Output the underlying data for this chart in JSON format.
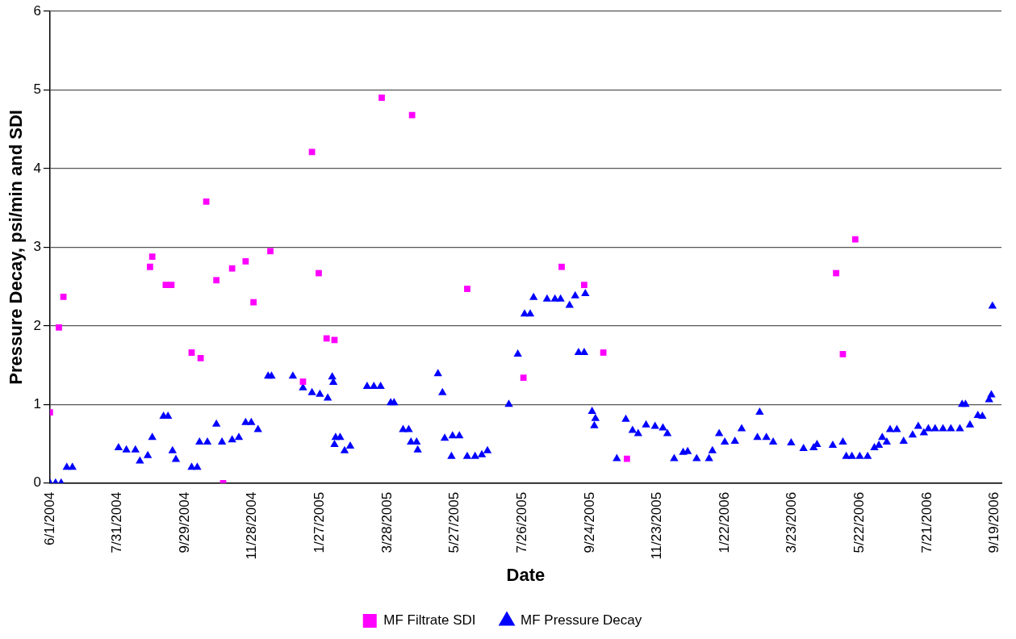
{
  "chart_data": {
    "type": "scatter",
    "xlabel": "Date",
    "ylabel": "Pressure Decay, psi/min and SDI",
    "xlim": [
      "2004-06-01",
      "2006-09-25"
    ],
    "xticks": [
      {
        "value": "2004-06-01",
        "label": "6/1/2004"
      },
      {
        "value": "2004-07-31",
        "label": "7/31/2004"
      },
      {
        "value": "2004-09-29",
        "label": "9/29/2004"
      },
      {
        "value": "2004-11-28",
        "label": "11/28/2004"
      },
      {
        "value": "2005-01-27",
        "label": "1/27/2005"
      },
      {
        "value": "2005-03-28",
        "label": "3/28/2005"
      },
      {
        "value": "2005-05-27",
        "label": "5/27/2005"
      },
      {
        "value": "2005-07-26",
        "label": "7/26/2005"
      },
      {
        "value": "2005-09-24",
        "label": "9/24/2005"
      },
      {
        "value": "2005-11-23",
        "label": "11/23/2005"
      },
      {
        "value": "2006-01-22",
        "label": "1/22/2006"
      },
      {
        "value": "2006-03-23",
        "label": "3/23/2006"
      },
      {
        "value": "2006-05-22",
        "label": "5/22/2006"
      },
      {
        "value": "2006-07-21",
        "label": "7/21/2006"
      },
      {
        "value": "2006-09-19",
        "label": "9/19/2006"
      }
    ],
    "ylim": [
      0,
      6
    ],
    "yticks": [
      0,
      1,
      2,
      3,
      4,
      5,
      6
    ],
    "grid": "y",
    "legend": "bottom",
    "series": [
      {
        "name": "MF Filtrate SDI",
        "color": "#ff00ff",
        "marker": "square",
        "x": [
          "2004-06-01",
          "2004-06-09",
          "2004-06-13",
          "2004-08-29",
          "2004-08-31",
          "2004-09-12",
          "2004-09-17",
          "2004-10-05",
          "2004-10-13",
          "2004-10-18",
          "2004-10-27",
          "2004-11-02",
          "2004-11-10",
          "2004-11-22",
          "2004-11-29",
          "2004-12-14",
          "2005-01-12",
          "2005-01-20",
          "2005-01-26",
          "2005-02-02",
          "2005-02-09",
          "2005-03-23",
          "2005-04-19",
          "2005-06-07",
          "2005-07-27",
          "2005-08-30",
          "2005-09-19",
          "2005-10-06",
          "2005-10-27",
          "2006-05-01",
          "2006-05-07",
          "2006-05-18"
        ],
        "values": [
          0.9,
          1.98,
          2.37,
          2.75,
          2.88,
          2.52,
          2.52,
          1.66,
          1.59,
          3.58,
          2.58,
          0,
          2.73,
          2.82,
          2.3,
          2.95,
          1.29,
          4.21,
          2.67,
          1.84,
          1.82,
          4.9,
          4.68,
          2.47,
          1.34,
          2.75,
          2.52,
          1.66,
          0.31,
          2.67,
          1.64,
          3.1
        ]
      },
      {
        "name": "MF Pressure Decay",
        "color": "#0000ff",
        "marker": "triangle",
        "x": [
          "2004-06-01",
          "2004-06-06",
          "2004-06-11",
          "2004-06-16",
          "2004-06-21",
          "2004-08-01",
          "2004-08-08",
          "2004-08-16",
          "2004-08-20",
          "2004-08-27",
          "2004-08-31",
          "2004-09-10",
          "2004-09-14",
          "2004-09-18",
          "2004-09-21",
          "2004-10-05",
          "2004-10-10",
          "2004-10-12",
          "2004-10-19",
          "2004-10-27",
          "2004-11-01",
          "2004-11-10",
          "2004-11-16",
          "2004-11-22",
          "2004-11-27",
          "2004-12-03",
          "2004-12-12",
          "2004-12-15",
          "2005-01-03",
          "2005-01-12",
          "2005-01-20",
          "2005-01-27",
          "2005-02-03",
          "2005-02-07",
          "2005-02-08",
          "2005-02-09",
          "2005-02-10",
          "2005-02-14",
          "2005-02-18",
          "2005-02-23",
          "2005-03-10",
          "2005-03-16",
          "2005-03-22",
          "2005-03-31",
          "2005-04-03",
          "2005-04-11",
          "2005-04-16",
          "2005-04-18",
          "2005-04-23",
          "2005-04-24",
          "2005-05-12",
          "2005-05-16",
          "2005-05-18",
          "2005-05-24",
          "2005-05-25",
          "2005-05-31",
          "2005-06-07",
          "2005-06-14",
          "2005-06-20",
          "2005-06-25",
          "2005-07-14",
          "2005-07-22",
          "2005-07-28",
          "2005-08-02",
          "2005-08-05",
          "2005-08-17",
          "2005-08-24",
          "2005-08-29",
          "2005-09-06",
          "2005-09-11",
          "2005-09-14",
          "2005-09-19",
          "2005-09-20",
          "2005-09-26",
          "2005-09-28",
          "2005-09-29",
          "2005-10-18",
          "2005-10-26",
          "2005-11-01",
          "2005-11-06",
          "2005-11-13",
          "2005-11-21",
          "2005-11-28",
          "2005-12-02",
          "2005-12-08",
          "2005-12-16",
          "2005-12-20",
          "2005-12-28",
          "2006-01-08",
          "2006-01-11",
          "2006-01-17",
          "2006-01-22",
          "2006-01-31",
          "2006-02-06",
          "2006-02-20",
          "2006-02-22",
          "2006-02-28",
          "2006-03-06",
          "2006-03-22",
          "2006-04-02",
          "2006-04-11",
          "2006-04-14",
          "2006-04-28",
          "2006-05-07",
          "2006-05-10",
          "2006-05-15",
          "2006-05-22",
          "2006-05-29",
          "2006-06-04",
          "2006-06-08",
          "2006-06-11",
          "2006-06-15",
          "2006-06-18",
          "2006-06-24",
          "2006-06-30",
          "2006-07-08",
          "2006-07-13",
          "2006-07-18",
          "2006-07-22",
          "2006-07-28",
          "2006-08-04",
          "2006-08-11",
          "2006-08-19",
          "2006-08-21",
          "2006-08-24",
          "2006-08-28",
          "2006-09-04",
          "2006-09-08",
          "2006-09-14",
          "2006-09-16",
          "2006-09-17"
        ],
        "values": [
          0,
          0,
          0,
          0.2,
          0.2,
          0.45,
          0.42,
          0.42,
          0.28,
          0.35,
          0.58,
          0.85,
          0.85,
          0.41,
          0.3,
          0.2,
          0.2,
          0.52,
          0.52,
          0.75,
          0.52,
          0.55,
          0.58,
          0.77,
          0.77,
          0.68,
          1.36,
          1.36,
          1.36,
          1.21,
          1.15,
          1.13,
          1.08,
          1.35,
          1.28,
          0.49,
          0.58,
          0.58,
          0.41,
          0.47,
          1.23,
          1.23,
          1.23,
          1.02,
          1.02,
          0.68,
          0.68,
          0.52,
          0.52,
          0.42,
          1.39,
          1.15,
          0.57,
          0.34,
          0.6,
          0.6,
          0.34,
          0.34,
          0.36,
          0.41,
          1.0,
          1.64,
          2.15,
          2.15,
          2.36,
          2.34,
          2.34,
          2.34,
          2.26,
          2.38,
          1.66,
          1.66,
          2.41,
          0.91,
          0.73,
          0.82,
          0.31,
          0.81,
          0.67,
          0.63,
          0.74,
          0.72,
          0.7,
          0.63,
          0.31,
          0.39,
          0.4,
          0.31,
          0.31,
          0.41,
          0.63,
          0.52,
          0.53,
          0.69,
          0.58,
          0.9,
          0.58,
          0.52,
          0.51,
          0.44,
          0.45,
          0.49,
          0.48,
          0.52,
          0.34,
          0.34,
          0.34,
          0.34,
          0.45,
          0.48,
          0.58,
          0.52,
          0.68,
          0.68,
          0.53,
          0.61,
          0.72,
          0.64,
          0.69,
          0.69,
          0.69,
          0.69,
          0.69,
          1.0,
          1.0,
          0.74,
          0.86,
          0.85,
          1.06,
          1.12,
          2.25
        ]
      }
    ]
  }
}
